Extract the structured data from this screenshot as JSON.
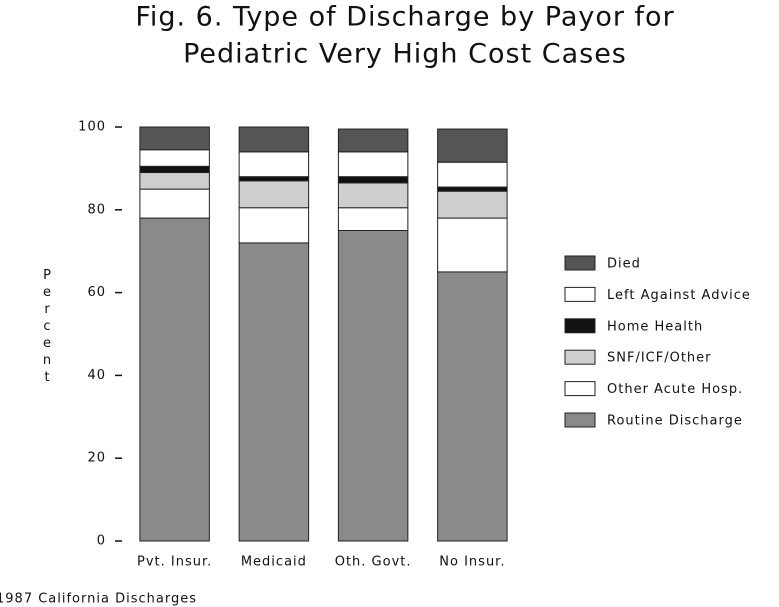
{
  "chart_data": {
    "type": "stacked_bar",
    "title": "Fig. 6.  Type of Discharge by Payor for",
    "subtitle": "Pediatric Very High Cost Cases",
    "y_label": "Percent",
    "footnote": "1987 California Discharges",
    "categories": [
      "Pvt. Insur.",
      "Medicaid",
      "Oth. Govt.",
      "No Insur."
    ],
    "series": [
      {
        "name": "Routine Discharge",
        "color": "#8a8a8a",
        "values": [
          78,
          72,
          75,
          65
        ]
      },
      {
        "name": "Other Acute Hosp.",
        "color": "#ffffff",
        "values": [
          7,
          8.5,
          5.5,
          13
        ]
      },
      {
        "name": "SNF/ICF/Other",
        "color": "#cfcfcf",
        "values": [
          4,
          6.5,
          6,
          6.5
        ]
      },
      {
        "name": "Home Health",
        "color": "#111111",
        "values": [
          1.5,
          1,
          1.5,
          1
        ]
      },
      {
        "name": "Left Against Advice",
        "color": "#ffffff",
        "values": [
          4,
          6,
          6,
          6
        ]
      },
      {
        "name": "Died",
        "color": "#555555",
        "values": [
          5.5,
          6,
          5.5,
          8
        ]
      }
    ],
    "ylim": [
      0,
      100
    ],
    "yticks": [
      0,
      20,
      40,
      60,
      80,
      100
    ],
    "grid": false,
    "legend": "right"
  }
}
